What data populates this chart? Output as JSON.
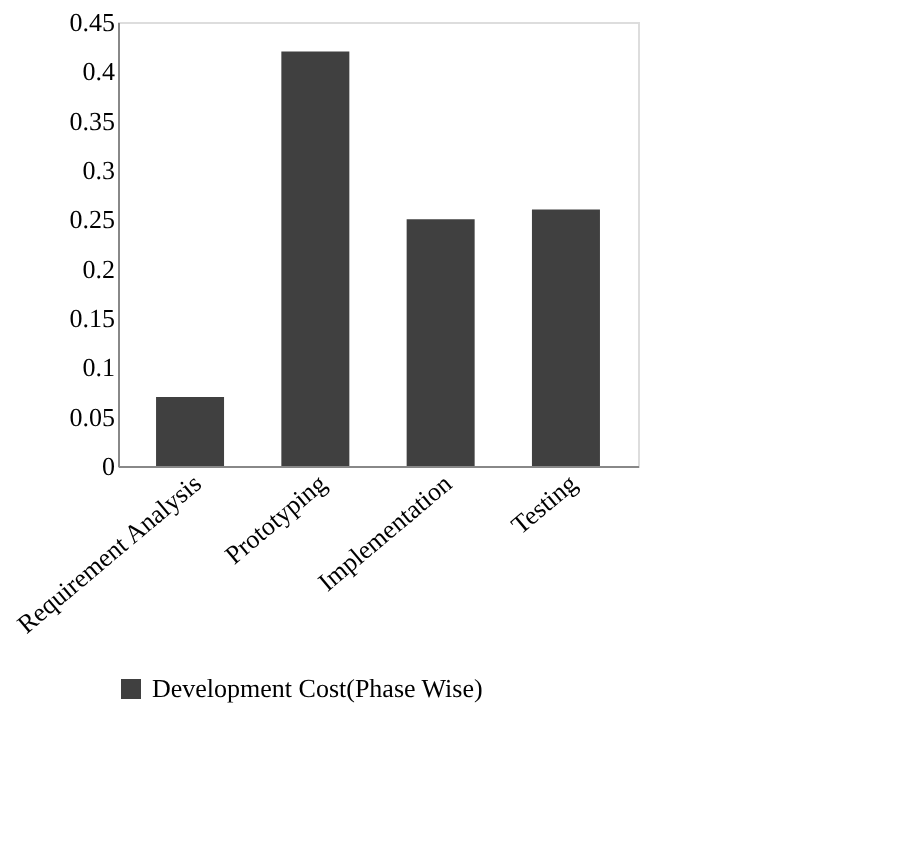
{
  "chart_data": {
    "type": "bar",
    "categories": [
      "Requirement Analysis",
      "Prototyping",
      "Implementation",
      "Testing"
    ],
    "series": [
      {
        "name": "Development Cost(Phase Wise)",
        "color": "#404040",
        "values": [
          0.07,
          0.42,
          0.25,
          0.26
        ]
      }
    ],
    "ylim": [
      0,
      0.45
    ],
    "yticks": [
      0,
      0.05,
      0.1,
      0.15,
      0.2,
      0.25,
      0.3,
      0.35,
      0.4,
      0.45
    ],
    "grid": false,
    "legend": "bottom"
  }
}
